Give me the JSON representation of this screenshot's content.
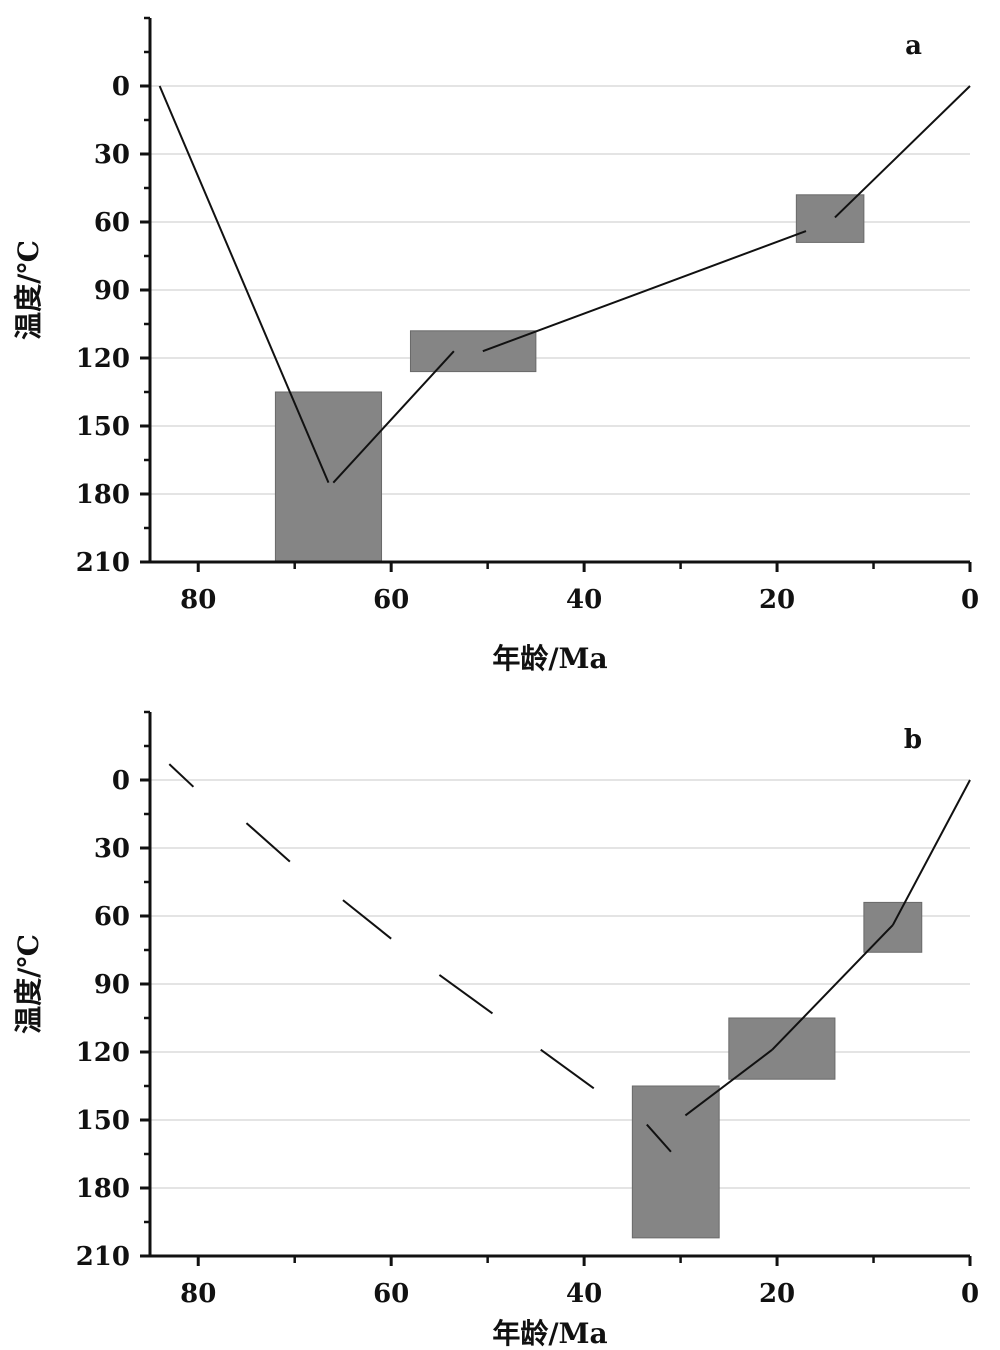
{
  "chart_data": [
    {
      "type": "line",
      "panel_label": "a",
      "xlabel": "年龄/Ma",
      "ylabel": "温度/℃",
      "xlim": [
        85,
        0
      ],
      "ylim": [
        210,
        -30
      ],
      "x_ticks": [
        80,
        60,
        40,
        20,
        0
      ],
      "y_ticks": [
        0,
        30,
        60,
        90,
        120,
        150,
        180,
        210
      ],
      "grid": "horizontal",
      "boxes": [
        {
          "x0": 72,
          "x1": 61,
          "y0": 135,
          "y1": 210
        },
        {
          "x0": 58,
          "x1": 45,
          "y0": 108,
          "y1": 126
        },
        {
          "x0": 18,
          "x1": 11,
          "y0": 48,
          "y1": 69
        }
      ],
      "path_segments": [
        {
          "style": "solid",
          "x": [
            84,
            66.5
          ],
          "y": [
            0,
            175
          ]
        },
        {
          "style": "solid",
          "x": [
            66,
            53.5
          ],
          "y": [
            175,
            117
          ]
        },
        {
          "style": "solid",
          "x": [
            50.5,
            17
          ],
          "y": [
            117,
            64
          ]
        },
        {
          "style": "solid",
          "x": [
            14,
            0
          ],
          "y": [
            58,
            0
          ]
        }
      ]
    },
    {
      "type": "line",
      "panel_label": "b",
      "xlabel": "年龄/Ma",
      "ylabel": "温度/℃",
      "xlim": [
        85,
        0
      ],
      "ylim": [
        210,
        -30
      ],
      "x_ticks": [
        80,
        60,
        40,
        20,
        0
      ],
      "y_ticks": [
        0,
        30,
        60,
        90,
        120,
        150,
        180,
        210
      ],
      "grid": "horizontal",
      "boxes": [
        {
          "x0": 35,
          "x1": 26,
          "y0": 135,
          "y1": 202
        },
        {
          "x0": 25,
          "x1": 14,
          "y0": 105,
          "y1": 132
        },
        {
          "x0": 11,
          "x1": 5,
          "y0": 54,
          "y1": 76
        }
      ],
      "path_segments": [
        {
          "style": "solid",
          "x": [
            83,
            80.5
          ],
          "y": [
            -7,
            3
          ]
        },
        {
          "style": "solid",
          "x": [
            75,
            70.5
          ],
          "y": [
            19,
            36
          ]
        },
        {
          "style": "solid",
          "x": [
            65,
            60
          ],
          "y": [
            53,
            70
          ]
        },
        {
          "style": "solid",
          "x": [
            55,
            49.5
          ],
          "y": [
            86,
            103
          ]
        },
        {
          "style": "solid",
          "x": [
            44.5,
            39
          ],
          "y": [
            119,
            136
          ]
        },
        {
          "style": "solid",
          "x": [
            33.5,
            31
          ],
          "y": [
            152,
            164
          ]
        },
        {
          "style": "solid",
          "x": [
            29.5,
            20.5
          ],
          "y": [
            148,
            119
          ]
        },
        {
          "style": "solid",
          "x": [
            20.5,
            8
          ],
          "y": [
            119,
            64
          ]
        },
        {
          "style": "solid",
          "x": [
            8,
            0
          ],
          "y": [
            64,
            0
          ]
        }
      ]
    }
  ]
}
